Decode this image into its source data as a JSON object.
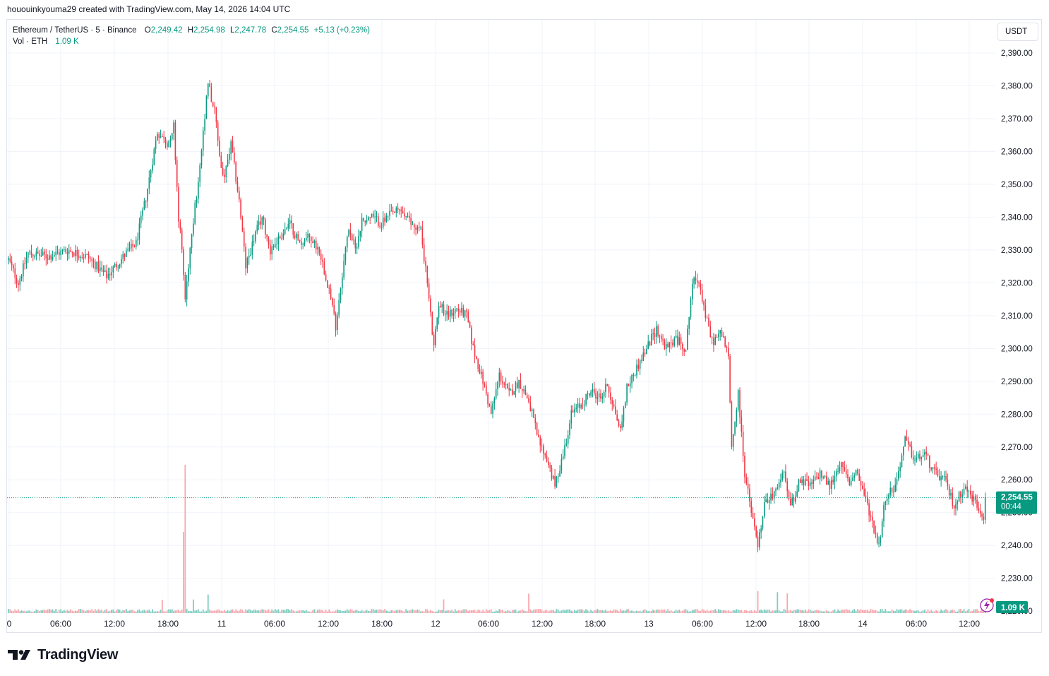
{
  "header": {
    "credit": "hououinkyouma29 created with TradingView.com, May 14, 2026 14:04 UTC"
  },
  "legend": {
    "symbol": "Ethereum / TetherUS · 5 · Binance",
    "open_label": "O",
    "open": "2,249.42",
    "high_label": "H",
    "high": "2,254.98",
    "low_label": "L",
    "low": "2,247.78",
    "close_label": "C",
    "close": "2,254.55",
    "change": "+5.13 (+0.23%)",
    "vol_label": "Vol · ETH",
    "vol_value": "1.09 K"
  },
  "currency_button": "USDT",
  "price_badge": {
    "price": "2,254.55",
    "countdown": "00:44"
  },
  "volume_badge": "1.09 K",
  "brand": {
    "name": "TradingView"
  },
  "colors": {
    "up": "#089981",
    "down": "#f23645",
    "grid": "#f0f3fa",
    "text": "#131722",
    "vol_up": "#7fcdc0",
    "vol_down": "#f7a9ae",
    "badge": "#089981"
  },
  "chart_data": {
    "type": "candlestick",
    "symbol": "ETH/USDT",
    "interval": "5",
    "exchange": "Binance",
    "ylim": [
      2226,
      2396
    ],
    "y_ticks": [
      "2,390.00",
      "2,380.00",
      "2,370.00",
      "2,360.00",
      "2,350.00",
      "2,340.00",
      "2,330.00",
      "2,320.00",
      "2,310.00",
      "2,300.00",
      "2,290.00",
      "2,280.00",
      "2,270.00",
      "2,260.00",
      "2,250.00",
      "2,240.00",
      "2,230.00",
      "2,220.00"
    ],
    "x_ticks": [
      "0",
      "06:00",
      "12:00",
      "18:00",
      "11",
      "06:00",
      "12:00",
      "18:00",
      "12",
      "06:00",
      "12:00",
      "18:00",
      "13",
      "06:00",
      "12:00",
      "18:00",
      "14",
      "06:00",
      "12:00"
    ],
    "last_price": 2254.55,
    "path_keypoints": [
      [
        0,
        2327
      ],
      [
        6,
        2320
      ],
      [
        12,
        2329
      ],
      [
        24,
        2328
      ],
      [
        36,
        2330
      ],
      [
        48,
        2328
      ],
      [
        60,
        2322
      ],
      [
        72,
        2329
      ],
      [
        78,
        2332
      ],
      [
        84,
        2346
      ],
      [
        91,
        2366
      ],
      [
        97,
        2362
      ],
      [
        101,
        2368
      ],
      [
        104,
        2340
      ],
      [
        106,
        2330
      ],
      [
        108,
        2315
      ],
      [
        112,
        2336
      ],
      [
        116,
        2350
      ],
      [
        120,
        2370
      ],
      [
        122,
        2381
      ],
      [
        126,
        2372
      ],
      [
        130,
        2355
      ],
      [
        132,
        2352
      ],
      [
        136,
        2362
      ],
      [
        141,
        2345
      ],
      [
        145,
        2325
      ],
      [
        151,
        2335
      ],
      [
        155,
        2340
      ],
      [
        160,
        2330
      ],
      [
        166,
        2334
      ],
      [
        172,
        2338
      ],
      [
        178,
        2332
      ],
      [
        184,
        2334
      ],
      [
        190,
        2330
      ],
      [
        196,
        2318
      ],
      [
        200,
        2307
      ],
      [
        204,
        2323
      ],
      [
        208,
        2337
      ],
      [
        212,
        2330
      ],
      [
        216,
        2339
      ],
      [
        222,
        2340
      ],
      [
        228,
        2338
      ],
      [
        234,
        2341
      ],
      [
        240,
        2342
      ],
      [
        246,
        2338
      ],
      [
        252,
        2336
      ],
      [
        256,
        2320
      ],
      [
        260,
        2300
      ],
      [
        263,
        2314
      ],
      [
        268,
        2310
      ],
      [
        274,
        2312
      ],
      [
        280,
        2310
      ],
      [
        284,
        2300
      ],
      [
        290,
        2290
      ],
      [
        295,
        2280
      ],
      [
        300,
        2292
      ],
      [
        306,
        2286
      ],
      [
        312,
        2290
      ],
      [
        318,
        2284
      ],
      [
        324,
        2272
      ],
      [
        330,
        2265
      ],
      [
        334,
        2258
      ],
      [
        340,
        2270
      ],
      [
        344,
        2280
      ],
      [
        350,
        2283
      ],
      [
        356,
        2287
      ],
      [
        362,
        2285
      ],
      [
        366,
        2289
      ],
      [
        370,
        2282
      ],
      [
        374,
        2275
      ],
      [
        378,
        2288
      ],
      [
        384,
        2294
      ],
      [
        390,
        2300
      ],
      [
        396,
        2306
      ],
      [
        402,
        2300
      ],
      [
        408,
        2303
      ],
      [
        414,
        2300
      ],
      [
        418,
        2320
      ],
      [
        422,
        2321
      ],
      [
        426,
        2310
      ],
      [
        430,
        2302
      ],
      [
        436,
        2305
      ],
      [
        440,
        2297
      ],
      [
        442,
        2270
      ],
      [
        446,
        2286
      ],
      [
        450,
        2262
      ],
      [
        454,
        2250
      ],
      [
        458,
        2240
      ],
      [
        462,
        2252
      ],
      [
        466,
        2255
      ],
      [
        470,
        2258
      ],
      [
        474,
        2263
      ],
      [
        478,
        2252
      ],
      [
        484,
        2260
      ],
      [
        490,
        2258
      ],
      [
        496,
        2262
      ],
      [
        502,
        2258
      ],
      [
        508,
        2265
      ],
      [
        514,
        2259
      ],
      [
        518,
        2263
      ],
      [
        524,
        2254
      ],
      [
        528,
        2247
      ],
      [
        532,
        2240
      ],
      [
        536,
        2255
      ],
      [
        542,
        2258
      ],
      [
        548,
        2272
      ],
      [
        554,
        2266
      ],
      [
        560,
        2268
      ],
      [
        566,
        2262
      ],
      [
        572,
        2260
      ],
      [
        578,
        2252
      ],
      [
        584,
        2258
      ],
      [
        590,
        2254
      ],
      [
        596,
        2249
      ],
      [
        597,
        2254.55
      ]
    ],
    "volume_spike_times": [
      94,
      113,
      122,
      266,
      318,
      458,
      470,
      476
    ]
  }
}
